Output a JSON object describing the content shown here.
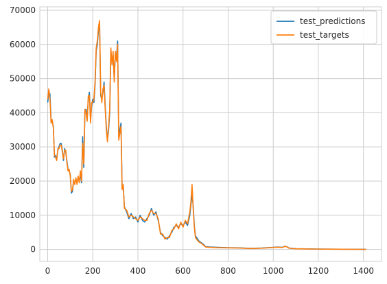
{
  "chart_data": {
    "type": "line",
    "title": "",
    "xlabel": "",
    "ylabel": "",
    "xlim": [
      -35,
      1480
    ],
    "ylim": [
      -3500,
      71000
    ],
    "xticks": [
      0,
      200,
      400,
      600,
      800,
      1000,
      1200,
      1400
    ],
    "yticks": [
      0,
      10000,
      20000,
      30000,
      40000,
      50000,
      60000,
      70000
    ],
    "xtick_labels": [
      "0",
      "200",
      "400",
      "600",
      "800",
      "1000",
      "1200",
      "1400"
    ],
    "ytick_labels": [
      "0",
      "10000",
      "20000",
      "30000",
      "40000",
      "50000",
      "60000",
      "70000"
    ],
    "grid": true,
    "legend_position": "top-right",
    "series": [
      {
        "name": "test_predictions",
        "color": "#1f77b4",
        "x": [
          0,
          5,
          10,
          15,
          20,
          25,
          30,
          35,
          40,
          45,
          50,
          55,
          60,
          65,
          70,
          75,
          80,
          85,
          90,
          95,
          100,
          105,
          110,
          115,
          120,
          125,
          130,
          135,
          140,
          145,
          150,
          155,
          160,
          165,
          170,
          175,
          180,
          185,
          190,
          195,
          200,
          205,
          210,
          215,
          220,
          225,
          230,
          235,
          240,
          245,
          250,
          255,
          260,
          265,
          270,
          275,
          280,
          285,
          290,
          295,
          300,
          305,
          310,
          315,
          320,
          325,
          330,
          335,
          340,
          350,
          360,
          370,
          380,
          390,
          400,
          410,
          420,
          430,
          440,
          450,
          460,
          470,
          480,
          490,
          500,
          510,
          520,
          530,
          540,
          550,
          560,
          570,
          580,
          590,
          600,
          610,
          620,
          630,
          635,
          640,
          645,
          650,
          655,
          660,
          670,
          680,
          690,
          700,
          720,
          750,
          800,
          850,
          900,
          950,
          1000,
          1020,
          1040,
          1050,
          1060,
          1070,
          1100,
          1150,
          1200,
          1250,
          1300,
          1350,
          1400,
          1412
        ],
        "values": [
          43000,
          46000,
          45500,
          38000,
          37500,
          36000,
          27000,
          27500,
          26500,
          29000,
          30000,
          31000,
          31000,
          29000,
          26000,
          29500,
          28500,
          26000,
          23500,
          23000,
          22000,
          16500,
          17000,
          20000,
          19500,
          20500,
          19500,
          21000,
          20000,
          22000,
          19500,
          33000,
          24000,
          40000,
          41000,
          38000,
          44000,
          46000,
          38000,
          42000,
          44000,
          43000,
          48000,
          58000,
          60000,
          64000,
          66000,
          45000,
          44000,
          46000,
          49000,
          42000,
          36000,
          32000,
          35000,
          40000,
          58000,
          55000,
          57000,
          50000,
          57000,
          56000,
          61000,
          33000,
          35000,
          37000,
          18000,
          18500,
          12500,
          11000,
          9000,
          10500,
          9000,
          9500,
          8000,
          10000,
          8500,
          8000,
          9000,
          10000,
          12000,
          10000,
          11000,
          8500,
          5000,
          4000,
          3500,
          3000,
          4000,
          5000,
          6500,
          7000,
          6500,
          7500,
          7000,
          8000,
          7000,
          10000,
          13000,
          16000,
          13000,
          7000,
          4000,
          3500,
          2500,
          2000,
          1500,
          800,
          700,
          600,
          500,
          450,
          300,
          400,
          600,
          700,
          600,
          900,
          800,
          400,
          200,
          150,
          100,
          80,
          60,
          40,
          20,
          10
        ]
      },
      {
        "name": "test_targets",
        "color": "#ff7f0e",
        "x": [
          0,
          5,
          10,
          15,
          20,
          25,
          30,
          35,
          40,
          45,
          50,
          55,
          60,
          65,
          70,
          75,
          80,
          85,
          90,
          95,
          100,
          105,
          110,
          115,
          120,
          125,
          130,
          135,
          140,
          145,
          150,
          155,
          160,
          165,
          170,
          175,
          180,
          185,
          190,
          195,
          200,
          205,
          210,
          215,
          220,
          225,
          230,
          235,
          240,
          245,
          250,
          255,
          260,
          265,
          270,
          275,
          280,
          285,
          290,
          295,
          300,
          305,
          310,
          315,
          320,
          325,
          330,
          335,
          340,
          350,
          360,
          370,
          380,
          390,
          400,
          410,
          420,
          430,
          440,
          450,
          460,
          470,
          480,
          490,
          500,
          510,
          520,
          530,
          540,
          550,
          560,
          570,
          580,
          590,
          600,
          610,
          620,
          630,
          635,
          640,
          645,
          650,
          655,
          660,
          670,
          680,
          690,
          700,
          720,
          750,
          800,
          850,
          900,
          950,
          1000,
          1020,
          1040,
          1050,
          1060,
          1070,
          1100,
          1150,
          1200,
          1250,
          1300,
          1350,
          1400,
          1412
        ],
        "values": [
          44000,
          47000,
          44000,
          37000,
          38000,
          35500,
          27500,
          27000,
          26000,
          29500,
          29500,
          30500,
          30500,
          28500,
          26500,
          29000,
          29000,
          25500,
          23000,
          23500,
          21500,
          17000,
          17500,
          20500,
          19000,
          21000,
          19000,
          21500,
          19500,
          23000,
          20000,
          31000,
          25000,
          41000,
          40000,
          37500,
          45000,
          45000,
          37000,
          43000,
          43000,
          44000,
          49000,
          59000,
          61000,
          65000,
          67000,
          46000,
          43000,
          47000,
          48000,
          41000,
          35000,
          31500,
          36000,
          41000,
          59000,
          54000,
          58000,
          49000,
          58000,
          55000,
          60000,
          32000,
          34000,
          36000,
          17500,
          19000,
          12000,
          11500,
          9500,
          10000,
          9500,
          9000,
          8500,
          9500,
          9000,
          8500,
          8500,
          10500,
          11500,
          10500,
          10500,
          9000,
          4500,
          4500,
          3000,
          3500,
          3500,
          5500,
          6000,
          7500,
          6000,
          8000,
          6500,
          8500,
          7500,
          11000,
          14000,
          19000,
          12000,
          6500,
          3500,
          3000,
          2200,
          1800,
          1300,
          700,
          600,
          500,
          450,
          400,
          250,
          350,
          550,
          650,
          550,
          850,
          750,
          350,
          180,
          130,
          90,
          70,
          50,
          30,
          15,
          5
        ]
      }
    ]
  }
}
